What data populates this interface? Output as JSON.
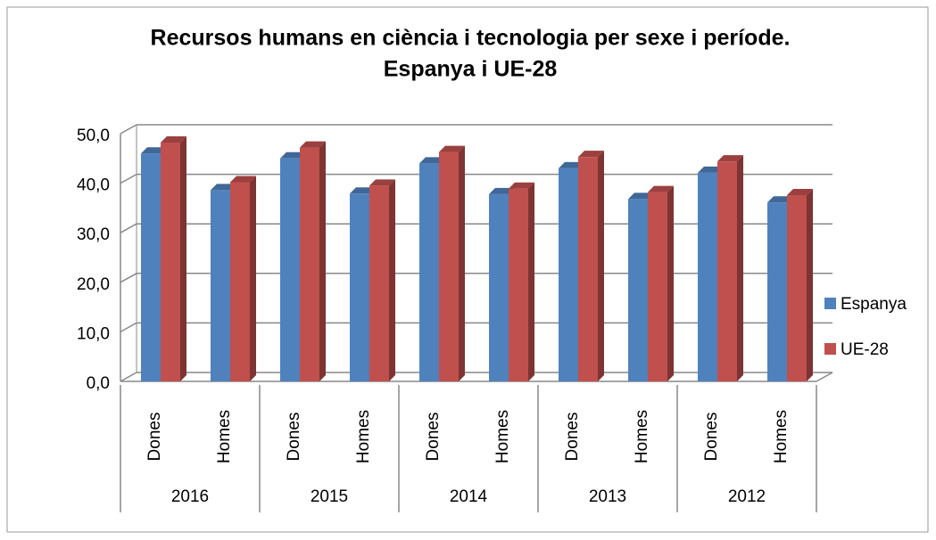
{
  "chart_data": {
    "type": "bar3d",
    "title": "Recursos humans en ciència i tecnologia per sexe i període.",
    "subtitle": "Espanya i UE-28",
    "categories": [
      "Dones",
      "Homes",
      "Dones",
      "Homes",
      "Dones",
      "Homes",
      "Dones",
      "Homes",
      "Dones",
      "Homes"
    ],
    "category_groups": [
      "2016",
      "2015",
      "2014",
      "2013",
      "2012"
    ],
    "series": [
      {
        "name": "Espanya",
        "color": "#4f81bd",
        "values": [
          46.0,
          38.6,
          45.0,
          37.9,
          44.0,
          37.8,
          43.0,
          36.8,
          42.1,
          36.1
        ]
      },
      {
        "name": "UE-28",
        "color": "#c0504d",
        "values": [
          48.2,
          40.2,
          47.2,
          39.5,
          46.3,
          38.9,
          45.3,
          38.2,
          44.4,
          37.6
        ]
      }
    ],
    "ylim": [
      0,
      50
    ],
    "yticks": [
      {
        "value": 0,
        "label": "0,0"
      },
      {
        "value": 10,
        "label": "10,0"
      },
      {
        "value": 20,
        "label": "20,0"
      },
      {
        "value": 30,
        "label": "30,0"
      },
      {
        "value": 40,
        "label": "40,0"
      },
      {
        "value": 50,
        "label": "50,0"
      }
    ],
    "grid": true,
    "legend": "right"
  }
}
